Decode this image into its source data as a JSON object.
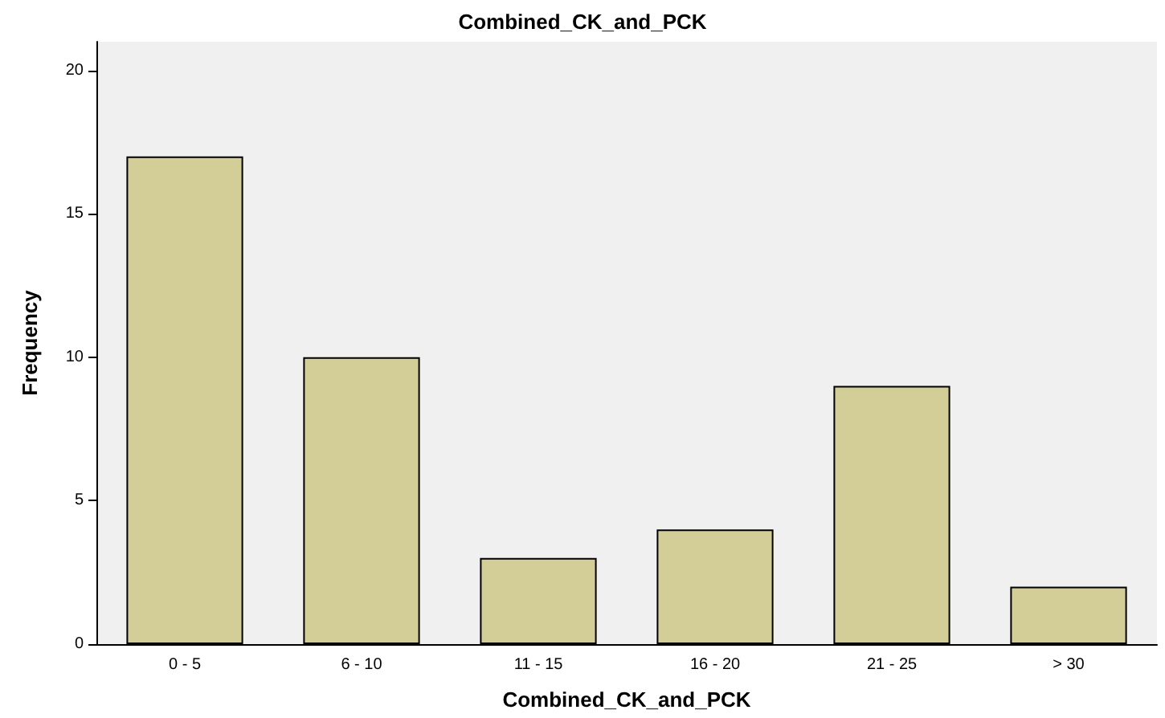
{
  "chart_data": {
    "type": "bar",
    "title": "Combined_CK_and_PCK",
    "xlabel": "Combined_CK_and_PCK",
    "ylabel": "Frequency",
    "categories": [
      "0 - 5",
      "6 - 10",
      "11 - 15",
      "16 - 20",
      "21 - 25",
      "> 30"
    ],
    "values": [
      17,
      10,
      3,
      4,
      9,
      2
    ],
    "color": "#d3ce97",
    "ylim": [
      0,
      21
    ],
    "yticks": [
      0,
      5,
      10,
      15,
      20
    ]
  }
}
